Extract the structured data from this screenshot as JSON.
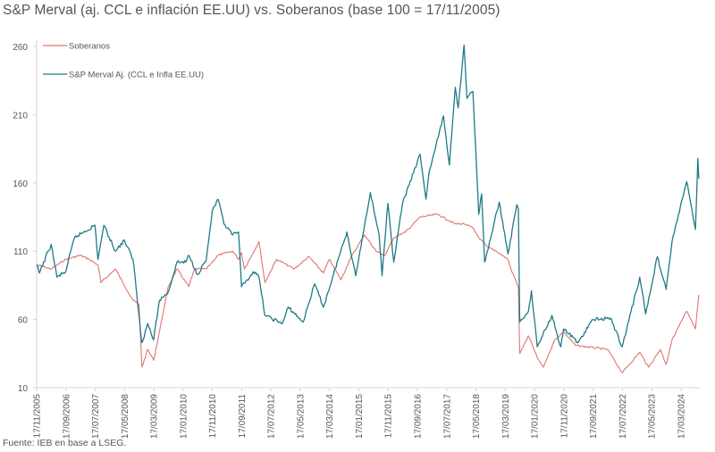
{
  "chart_data": {
    "type": "line",
    "title": "S&P Merval (aj. CCL e inflación EE.UU)  vs. Soberanos (base 100 = 17/11/2005)",
    "source": "Fuente: IEB en base a LSEG.",
    "xlabel": "",
    "ylabel": "",
    "ylim": [
      10,
      260
    ],
    "y_ticks": [
      "10",
      "60",
      "110",
      "160",
      "210",
      "260"
    ],
    "x_ticks": [
      "17/11/2005",
      "17/09/2006",
      "17/07/2007",
      "17/05/2008",
      "17/03/2009",
      "17/01/2010",
      "17/11/2010",
      "17/09/2011",
      "17/07/2012",
      "17/05/2013",
      "17/03/2014",
      "17/01/2015",
      "17/11/2015",
      "17/09/2016",
      "17/07/2017",
      "17/05/2018",
      "17/03/2019",
      "17/01/2020",
      "17/11/2020",
      "17/09/2021",
      "17/07/2022",
      "17/05/2023",
      "17/03/2024"
    ],
    "xlim": [
      "2005-11-17",
      "2024-09-20"
    ],
    "grid": false,
    "legend_position": "top-left",
    "series": [
      {
        "name": "Soberanos",
        "color": "#e07472",
        "points": [
          [
            "2005-11-17",
            100
          ],
          [
            "2006-04-15",
            97
          ],
          [
            "2006-09-15",
            104
          ],
          [
            "2007-02-15",
            107
          ],
          [
            "2007-05-15",
            104
          ],
          [
            "2007-08-15",
            100
          ],
          [
            "2007-09-15",
            87
          ],
          [
            "2008-02-15",
            97
          ],
          [
            "2008-05-15",
            85
          ],
          [
            "2008-08-15",
            74
          ],
          [
            "2008-10-15",
            71
          ],
          [
            "2008-11-15",
            25
          ],
          [
            "2009-01-15",
            38
          ],
          [
            "2009-03-15",
            30
          ],
          [
            "2009-05-15",
            51
          ],
          [
            "2009-08-15",
            84
          ],
          [
            "2009-11-15",
            97
          ],
          [
            "2010-03-15",
            84
          ],
          [
            "2010-05-15",
            97
          ],
          [
            "2010-09-15",
            97
          ],
          [
            "2011-01-15",
            107
          ],
          [
            "2011-06-15",
            110
          ],
          [
            "2011-08-15",
            104
          ],
          [
            "2011-09-15",
            109
          ],
          [
            "2011-10-15",
            97
          ],
          [
            "2012-03-15",
            117
          ],
          [
            "2012-05-15",
            87
          ],
          [
            "2012-09-15",
            104
          ],
          [
            "2013-03-15",
            97
          ],
          [
            "2013-08-15",
            106
          ],
          [
            "2014-01-15",
            94
          ],
          [
            "2014-03-15",
            104
          ],
          [
            "2014-07-15",
            89
          ],
          [
            "2014-10-15",
            104
          ],
          [
            "2015-03-15",
            122
          ],
          [
            "2015-07-15",
            110
          ],
          [
            "2015-10-15",
            107
          ],
          [
            "2016-01-15",
            120
          ],
          [
            "2016-05-15",
            124
          ],
          [
            "2016-10-15",
            135
          ],
          [
            "2017-04-15",
            137
          ],
          [
            "2017-10-15",
            130
          ],
          [
            "2018-01-15",
            130
          ],
          [
            "2018-04-15",
            127
          ],
          [
            "2018-06-15",
            120
          ],
          [
            "2018-09-15",
            113
          ],
          [
            "2018-12-15",
            110
          ],
          [
            "2019-04-15",
            104
          ],
          [
            "2019-05-15",
            97
          ],
          [
            "2019-08-01",
            84
          ],
          [
            "2019-08-15",
            35
          ],
          [
            "2019-11-15",
            48
          ],
          [
            "2020-02-15",
            32
          ],
          [
            "2020-04-15",
            25
          ],
          [
            "2020-08-15",
            45
          ],
          [
            "2020-11-15",
            51
          ],
          [
            "2021-03-15",
            41
          ],
          [
            "2022-02-15",
            38
          ],
          [
            "2022-07-15",
            21
          ],
          [
            "2023-01-15",
            36
          ],
          [
            "2023-04-15",
            25
          ],
          [
            "2023-08-15",
            38
          ],
          [
            "2023-10-15",
            27
          ],
          [
            "2023-12-15",
            45
          ],
          [
            "2024-05-15",
            66
          ],
          [
            "2024-08-15",
            53
          ],
          [
            "2024-09-20",
            78
          ]
        ]
      },
      {
        "name": "S&P Merval Aj. (CCL e Infla EE.UU)",
        "color": "#1f7a86",
        "points": [
          [
            "2005-11-17",
            100
          ],
          [
            "2005-12-15",
            94
          ],
          [
            "2006-04-15",
            115
          ],
          [
            "2006-06-15",
            91
          ],
          [
            "2006-09-15",
            95
          ],
          [
            "2006-12-15",
            120
          ],
          [
            "2007-07-15",
            129
          ],
          [
            "2007-08-15",
            104
          ],
          [
            "2007-10-15",
            129
          ],
          [
            "2008-02-15",
            110
          ],
          [
            "2008-05-15",
            118
          ],
          [
            "2008-08-15",
            104
          ],
          [
            "2008-11-15",
            43
          ],
          [
            "2009-01-15",
            57
          ],
          [
            "2009-03-15",
            45
          ],
          [
            "2009-05-15",
            74
          ],
          [
            "2009-08-15",
            80
          ],
          [
            "2009-11-15",
            102
          ],
          [
            "2010-02-15",
            102
          ],
          [
            "2010-03-15",
            107
          ],
          [
            "2010-06-15",
            93
          ],
          [
            "2010-09-15",
            104
          ],
          [
            "2010-11-15",
            139
          ],
          [
            "2011-01-15",
            148
          ],
          [
            "2011-03-15",
            130
          ],
          [
            "2011-06-15",
            122
          ],
          [
            "2011-08-15",
            124
          ],
          [
            "2011-09-15",
            84
          ],
          [
            "2011-11-15",
            89
          ],
          [
            "2012-01-15",
            95
          ],
          [
            "2012-03-15",
            91
          ],
          [
            "2012-05-15",
            63
          ],
          [
            "2012-11-15",
            57
          ],
          [
            "2013-01-15",
            69
          ],
          [
            "2013-06-15",
            58
          ],
          [
            "2013-10-15",
            86
          ],
          [
            "2014-01-15",
            69
          ],
          [
            "2014-06-15",
            104
          ],
          [
            "2014-09-15",
            124
          ],
          [
            "2014-12-15",
            92
          ],
          [
            "2015-05-15",
            153
          ],
          [
            "2015-08-15",
            122
          ],
          [
            "2015-09-15",
            92
          ],
          [
            "2015-11-15",
            145
          ],
          [
            "2016-01-15",
            102
          ],
          [
            "2016-04-15",
            145
          ],
          [
            "2016-10-15",
            181
          ],
          [
            "2016-12-15",
            148
          ],
          [
            "2017-01-15",
            167
          ],
          [
            "2017-06-15",
            209
          ],
          [
            "2017-08-15",
            173
          ],
          [
            "2017-10-15",
            230
          ],
          [
            "2017-11-15",
            215
          ],
          [
            "2018-01-15",
            261
          ],
          [
            "2018-02-15",
            222
          ],
          [
            "2018-04-15",
            227
          ],
          [
            "2018-05-15",
            185
          ],
          [
            "2018-06-15",
            137
          ],
          [
            "2018-07-15",
            152
          ],
          [
            "2018-08-15",
            102
          ],
          [
            "2018-09-15",
            110
          ],
          [
            "2019-01-15",
            146
          ],
          [
            "2019-04-15",
            108
          ],
          [
            "2019-07-15",
            144
          ],
          [
            "2019-08-01",
            141
          ],
          [
            "2019-08-15",
            58
          ],
          [
            "2019-11-15",
            66
          ],
          [
            "2019-12-15",
            81
          ],
          [
            "2020-02-15",
            40
          ],
          [
            "2020-07-15",
            63
          ],
          [
            "2020-10-15",
            40
          ],
          [
            "2020-11-15",
            53
          ],
          [
            "2021-04-15",
            43
          ],
          [
            "2021-09-15",
            60
          ],
          [
            "2022-03-15",
            61
          ],
          [
            "2022-07-15",
            40
          ],
          [
            "2023-01-15",
            91
          ],
          [
            "2023-03-15",
            64
          ],
          [
            "2023-07-15",
            106
          ],
          [
            "2023-10-15",
            82
          ],
          [
            "2023-12-15",
            117
          ],
          [
            "2024-05-15",
            161
          ],
          [
            "2024-08-15",
            126
          ],
          [
            "2024-09-10",
            178
          ],
          [
            "2024-09-20",
            163
          ]
        ]
      }
    ]
  }
}
